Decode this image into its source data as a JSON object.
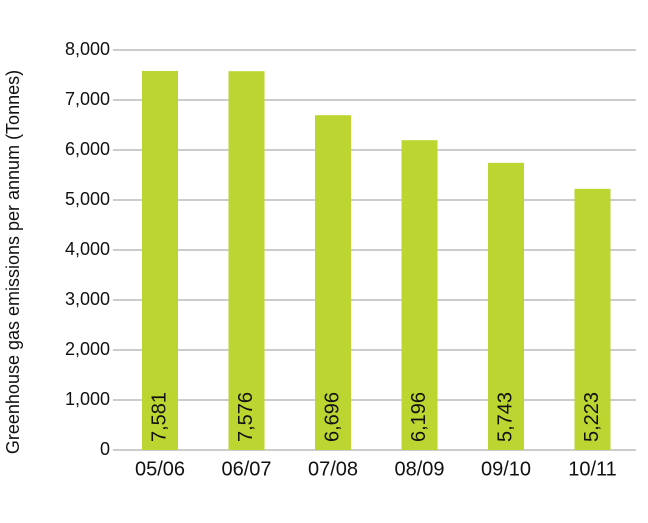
{
  "chart_data": {
    "type": "bar",
    "y_label": "Greenhouse gas emissions per annum (Tonnes)",
    "categories": [
      "05/06",
      "06/07",
      "07/08",
      "08/09",
      "09/10",
      "10/11"
    ],
    "values": [
      7581,
      7576,
      6696,
      6196,
      5743,
      5223
    ],
    "value_labels": [
      "7,581",
      "7,576",
      "6,696",
      "6,196",
      "5,743",
      "5,223"
    ],
    "color": "#bdd531",
    "ylim": [
      0,
      8000
    ],
    "yticks": [
      0,
      {
        "value": 1000,
        "label": "1,000"
      },
      {
        "value": 2000,
        "label": "2,000"
      },
      {
        "value": 3000,
        "label": "3,000"
      },
      {
        "value": 4000,
        "label": "4,000"
      },
      {
        "value": 5000,
        "label": "5,000"
      },
      {
        "value": 6000,
        "label": "6,000"
      },
      {
        "value": 7000,
        "label": "7,000"
      },
      {
        "value": 8000,
        "label": "8,000"
      }
    ],
    "grid": true
  }
}
